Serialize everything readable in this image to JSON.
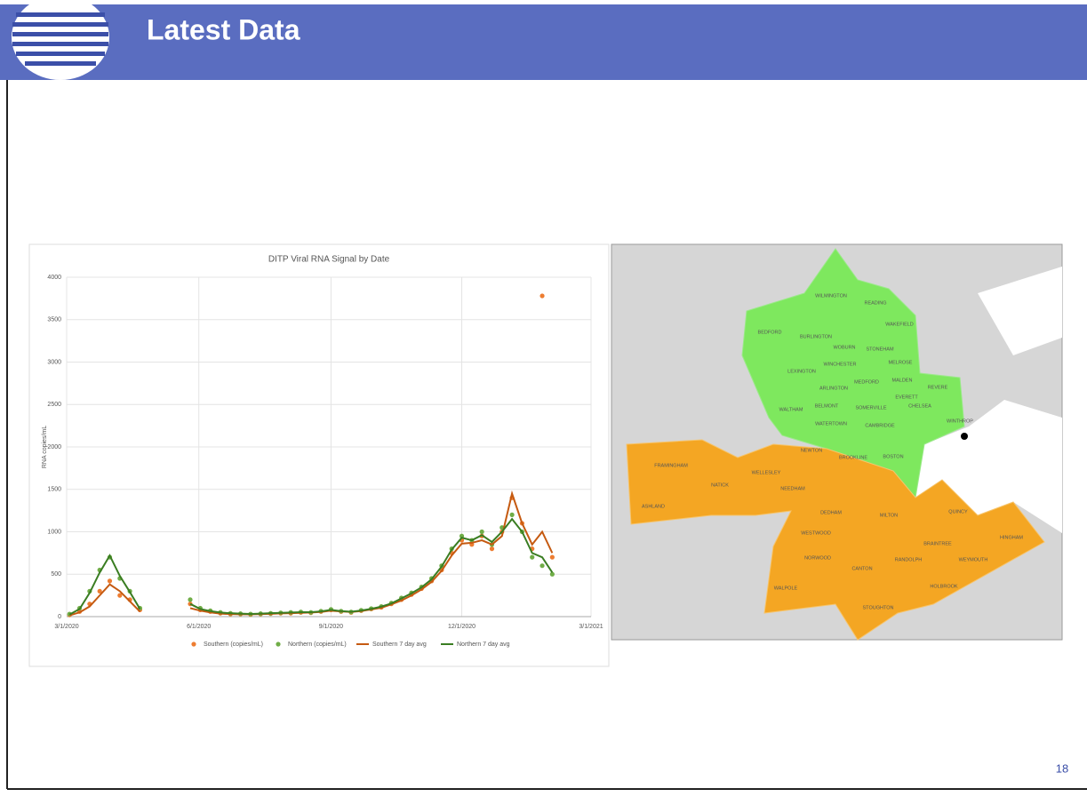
{
  "header": {
    "title": "Latest Data"
  },
  "page_number": "18",
  "chart_data": {
    "type": "scatter",
    "title": "DITP Viral RNA Signal by Date",
    "y_label": "RNA copies/mL",
    "x": [
      "3/3/2020",
      "3/10/2020",
      "3/17/2020",
      "3/24/2020",
      "3/31/2020",
      "4/7/2020",
      "4/14/2020",
      "4/21/2020",
      "5/5/2020",
      "5/26/2020",
      "6/2/2020",
      "6/9/2020",
      "6/16/2020",
      "6/23/2020",
      "6/30/2020",
      "7/7/2020",
      "7/14/2020",
      "7/21/2020",
      "7/28/2020",
      "8/4/2020",
      "8/11/2020",
      "8/18/2020",
      "8/25/2020",
      "9/1/2020",
      "9/8/2020",
      "9/15/2020",
      "9/22/2020",
      "9/29/2020",
      "10/6/2020",
      "10/13/2020",
      "10/20/2020",
      "10/27/2020",
      "11/3/2020",
      "11/10/2020",
      "11/17/2020",
      "11/24/2020",
      "12/1/2020",
      "12/8/2020",
      "12/15/2020",
      "12/22/2020",
      "12/29/2020",
      "1/5/2021",
      "1/12/2021",
      "1/19/2021",
      "1/26/2021",
      "2/2/2021"
    ],
    "series": [
      {
        "name": "Southern (copies/mL)",
        "type": "scatter",
        "color": "#ed7d31",
        "values": [
          20,
          60,
          150,
          300,
          420,
          250,
          200,
          80,
          null,
          150,
          80,
          60,
          40,
          30,
          30,
          25,
          30,
          35,
          40,
          40,
          50,
          45,
          60,
          80,
          60,
          50,
          70,
          90,
          110,
          150,
          200,
          260,
          330,
          420,
          550,
          750,
          900,
          850,
          950,
          800,
          1000,
          1400,
          1100,
          800,
          3780,
          700
        ]
      },
      {
        "name": "Northern (copies/mL)",
        "type": "scatter",
        "color": "#70ad47",
        "values": [
          30,
          100,
          300,
          550,
          700,
          450,
          300,
          100,
          null,
          200,
          100,
          70,
          50,
          40,
          35,
          30,
          35,
          40,
          45,
          50,
          55,
          50,
          65,
          85,
          65,
          55,
          75,
          95,
          120,
          160,
          220,
          280,
          350,
          450,
          600,
          800,
          950,
          900,
          1000,
          850,
          1050,
          1200,
          1000,
          700,
          600,
          500
        ]
      },
      {
        "name": "Southern 7 day avg",
        "type": "line",
        "color": "#c55a11",
        "values": [
          15,
          50,
          120,
          250,
          380,
          300,
          180,
          60,
          null,
          100,
          70,
          50,
          35,
          30,
          28,
          27,
          30,
          33,
          38,
          40,
          45,
          48,
          55,
          70,
          62,
          55,
          65,
          85,
          105,
          145,
          190,
          250,
          320,
          410,
          540,
          720,
          860,
          870,
          900,
          850,
          950,
          1450,
          1100,
          850,
          1000,
          750
        ]
      },
      {
        "name": "Northern 7 day avg",
        "type": "line",
        "color": "#3a7d22",
        "values": [
          25,
          90,
          280,
          520,
          720,
          480,
          290,
          90,
          null,
          150,
          90,
          65,
          48,
          40,
          35,
          32,
          35,
          40,
          45,
          48,
          52,
          52,
          62,
          80,
          65,
          58,
          72,
          92,
          118,
          155,
          215,
          275,
          345,
          440,
          590,
          790,
          930,
          900,
          960,
          880,
          1000,
          1150,
          1000,
          750,
          700,
          520
        ]
      }
    ],
    "xlim": [
      "3/1/2020",
      "3/1/2021"
    ],
    "xticks": [
      "3/1/2020",
      "6/1/2020",
      "9/1/2020",
      "12/1/2020",
      "3/1/2021"
    ],
    "ylim": [
      0,
      4000
    ],
    "yticks": [
      0,
      500,
      1000,
      1500,
      2000,
      2500,
      3000,
      3500,
      4000
    ],
    "grid": true
  },
  "map": {
    "towns": [
      "WILMINGTON",
      "READING",
      "WAKEFIELD",
      "BEDFORD",
      "BURLINGTON",
      "WOBURN",
      "STONEHAM",
      "MELROSE",
      "LEXINGTON",
      "WINCHESTER",
      "MEDFORD",
      "MALDEN",
      "REVERE",
      "ARLINGTON",
      "EVERETT",
      "BELMONT",
      "SOMERVILLE",
      "CHELSEA",
      "WALTHAM",
      "WATERTOWN",
      "CAMBRIDGE",
      "WINTHROP",
      "NEWTON",
      "BROOKLINE",
      "BOSTON",
      "FRAMINGHAM",
      "NATICK",
      "WELLESLEY",
      "NEEDHAM",
      "ASHLAND",
      "DEDHAM",
      "MILTON",
      "QUINCY",
      "WESTWOOD",
      "BRAINTREE",
      "HINGHAM",
      "NORWOOD",
      "RANDOLPH",
      "WEYMOUTH",
      "CANTON",
      "WALPOLE",
      "HOLBROOK",
      "STOUGHTON"
    ]
  }
}
